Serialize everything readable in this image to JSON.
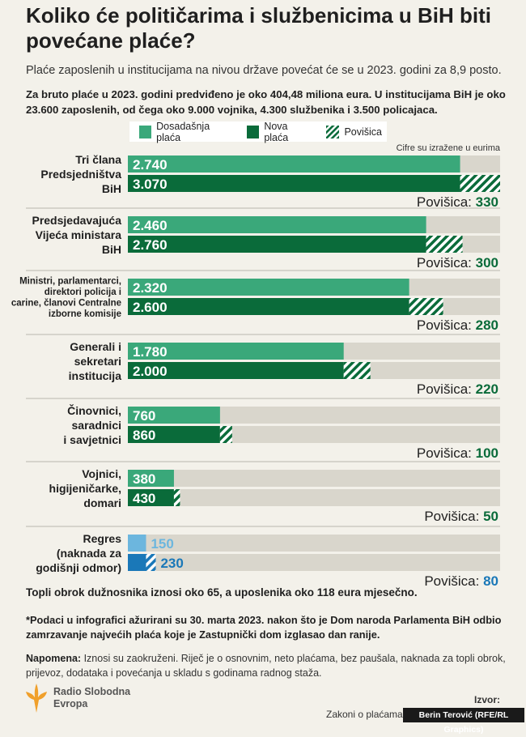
{
  "header": {
    "title": "Koliko će političarima i službenicima u BiH biti povećane plaće?",
    "subtitle": "Plaće zaposlenih u institucijama na nivou države povećat će se u 2023. godini za 8,9 posto.",
    "intro": "Za bruto plaće u 2023. godini predviđeno je oko 404,48 miliona eura. U institucijama BiH je oko 23.600 zaposlenih, od čega oko 9.000 vojnika, 4.300 službenika i 3.500 policajaca."
  },
  "legend": {
    "old": "Dosadašnja plaća",
    "new": "Nova plaća",
    "raise": "Povišica"
  },
  "units_note": "Cifre su izražene u eurima",
  "colors": {
    "old": "#3aa87a",
    "new": "#0a6b3a",
    "track": "#d9d6cc",
    "regres_old": "#6cb6de",
    "regres_new": "#1a78b8",
    "raise_text_green": "#0a6b3a",
    "raise_text_blue": "#1a78b8"
  },
  "chart_data": {
    "type": "bar",
    "orientation": "horizontal",
    "xlim": [
      0,
      3070
    ],
    "categories": [
      {
        "label": [
          "Tri člana",
          "Predsjedništva",
          "BiH"
        ],
        "old": 2740,
        "new": 3070,
        "old_label": "2.740",
        "new_label": "3.070",
        "raise": 330,
        "raise_label": "Povišica:",
        "raise_value": "330",
        "variant": "green"
      },
      {
        "label": [
          "Predsjedavajuća",
          "Vijeća ministara",
          "BiH"
        ],
        "old": 2460,
        "new": 2760,
        "old_label": "2.460",
        "new_label": "2.760",
        "raise": 300,
        "raise_label": "Povišica:",
        "raise_value": "300",
        "variant": "green"
      },
      {
        "label": [
          "Ministri, parlamentarci,",
          "direktori policija i",
          "carine, članovi Centralne",
          "izborne komisije"
        ],
        "old": 2320,
        "new": 2600,
        "old_label": "2.320",
        "new_label": "2.600",
        "raise": 280,
        "raise_label": "Povišica:",
        "raise_value": "280",
        "variant": "green"
      },
      {
        "label": [
          "Generali i",
          "sekretari",
          "institucija"
        ],
        "old": 1780,
        "new": 2000,
        "old_label": "1.780",
        "new_label": "2.000",
        "raise": 220,
        "raise_label": "Povišica:",
        "raise_value": "220",
        "variant": "green"
      },
      {
        "label": [
          "Činovnici,",
          "saradnici",
          "i savjetnici"
        ],
        "old": 760,
        "new": 860,
        "old_label": "760",
        "new_label": "860",
        "raise": 100,
        "raise_label": "Povišica:",
        "raise_value": "100",
        "variant": "green"
      },
      {
        "label": [
          "Vojnici,",
          "higijeničarke,",
          "domari"
        ],
        "old": 380,
        "new": 430,
        "old_label": "380",
        "new_label": "430",
        "raise": 50,
        "raise_label": "Povišica:",
        "raise_value": "50",
        "variant": "green"
      },
      {
        "label": [
          "Regres",
          "(naknada za",
          "godišnji odmor)"
        ],
        "old": 150,
        "new": 230,
        "old_label": "150",
        "new_label": "230",
        "raise": 80,
        "raise_label": "Povišica:",
        "raise_value": "80",
        "variant": "blue"
      }
    ]
  },
  "footer": {
    "note1": "Topli obrok dužnosnika iznosi oko 65, a uposlenika oko 118 eura mjesečno.",
    "note2": "*Podaci u infografici ažurirani su 30. marta 2023. nakon što je Dom naroda Parlamenta BiH odbio zamrzavanje najvećih plaća koje je Zastupnički dom izglasao dan ranije.",
    "note3_label": "Napomena:",
    "note3": "Iznosi su zaokruženi. Riječ je o osnovnim, neto plaćama, bez paušala, naknada za topli obrok, prijevoz, dodataka i povećanja u skladu s godinama radnog staža.",
    "logo_line1": "Radio Slobodna",
    "logo_line2": "Evropa",
    "source_label": "Izvor:",
    "source_text": "Zakoni o plaćama",
    "credit": "Berin Terović (RFE/RL Graphics)"
  }
}
